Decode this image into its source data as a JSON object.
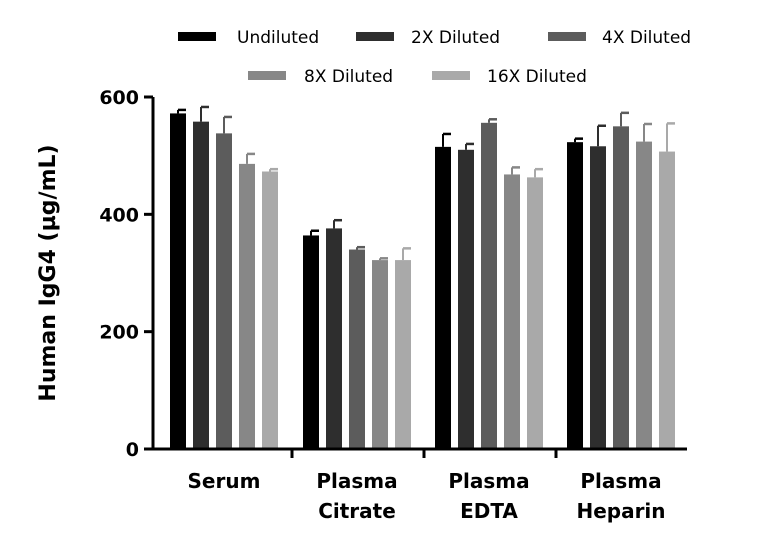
{
  "chart_data": {
    "type": "bar",
    "title": "",
    "xlabel": "",
    "ylabel": "Human IgG4 (µg/mL)",
    "ylim": [
      0,
      600
    ],
    "yticks": [
      0,
      200,
      400,
      600
    ],
    "grid": false,
    "legend_position": "top",
    "categories": [
      [
        "Serum"
      ],
      [
        "Plasma",
        "Citrate"
      ],
      [
        "Plasma",
        "EDTA"
      ],
      [
        "Plasma",
        "Heparin"
      ]
    ],
    "series": [
      {
        "name": "Undiluted",
        "color": "#000000",
        "values": [
          572,
          364,
          515,
          523
        ],
        "errors": [
          6,
          8,
          22,
          6
        ]
      },
      {
        "name": "2X Diluted",
        "color": "#2e2e2e",
        "values": [
          558,
          376,
          510,
          516
        ],
        "errors": [
          25,
          14,
          10,
          35
        ]
      },
      {
        "name": "4X Diluted",
        "color": "#5c5c5c",
        "values": [
          538,
          340,
          556,
          550
        ],
        "errors": [
          28,
          4,
          6,
          23
        ]
      },
      {
        "name": "8X Diluted",
        "color": "#878787",
        "values": [
          486,
          322,
          468,
          524
        ],
        "errors": [
          17,
          3,
          12,
          30
        ]
      },
      {
        "name": "16X Diluted",
        "color": "#a9a9a9",
        "values": [
          473,
          322,
          463,
          507
        ],
        "errors": [
          4,
          20,
          14,
          48
        ]
      }
    ]
  }
}
